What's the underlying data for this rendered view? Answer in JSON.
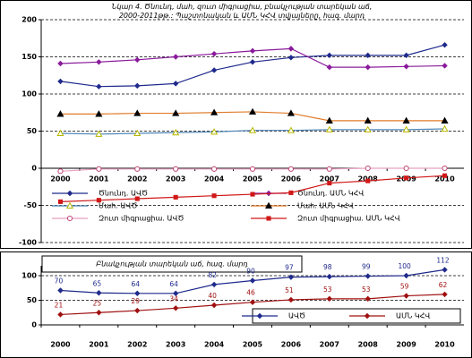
{
  "chart_data": [
    {
      "type": "line",
      "title": "Նկար 4. Ծնունդ, մահ, զուտ միգրացիա, բնակչության տարեկան աճ, 2000-2011թթ.: Պաշտոնական և ԱՄՆ ԿՀՎ տվյալները, հազ. մարդ",
      "categories": [
        "2000",
        "2001",
        "2002",
        "2003",
        "2004",
        "2005",
        "2006",
        "2007",
        "2008",
        "2009",
        "2010"
      ],
      "ylim": [
        -100,
        200
      ],
      "yticks": [
        -100,
        -50,
        0,
        50,
        100,
        150,
        200
      ],
      "grid": true,
      "series": [
        {
          "name": "Ծնունդ. ԱՎԾ",
          "color": "#1f2a8c",
          "marker": "diamond",
          "marker_color": "#1f2a8c",
          "values": [
            117,
            110,
            111,
            114,
            132,
            143,
            149,
            152,
            152,
            152,
            166
          ]
        },
        {
          "name": "Ծնունդ. ԱՄՆ ԿՀՎ",
          "color": "#8a1a9b",
          "marker": "diamond",
          "marker_color": "#8a1a9b",
          "values": [
            141,
            143,
            146,
            150,
            154,
            158,
            161,
            136,
            136,
            137,
            138
          ]
        },
        {
          "name": "Մահ. ԱՎԾ",
          "color": "#4f86b8",
          "marker": "triangle-open",
          "marker_color": "#b8b800",
          "values": [
            47,
            46,
            47,
            48,
            49,
            51,
            51,
            52,
            52,
            52,
            53
          ]
        },
        {
          "name": "Մահ. ԱՄՆ ԿՀՎ",
          "color": "#e07b2a",
          "marker": "triangle",
          "marker_color": "#000000",
          "values": [
            73,
            73,
            74,
            74,
            75,
            76,
            74,
            64,
            64,
            64,
            64
          ]
        },
        {
          "name": "Զուտ միգրացիա. ԱՎԾ",
          "color": "#e8a0c0",
          "marker": "circle-open",
          "marker_color": "#c04070",
          "values": [
            -4,
            -1,
            -1,
            -1,
            -1,
            -1,
            -1,
            -1,
            0,
            0,
            0
          ]
        },
        {
          "name": "Զուտ միգրացիա. ԱՄՆ ԿՀՎ",
          "color": "#d01818",
          "marker": "square",
          "marker_color": "#d01818",
          "values": [
            -45,
            -43,
            -41,
            -39,
            -37,
            -35,
            -33,
            -20,
            -17,
            -13,
            -10
          ]
        }
      ]
    },
    {
      "type": "line",
      "title": "Բնակչության տարեկան աճ, հազ. մարդ",
      "categories": [
        "2000",
        "2001",
        "2002",
        "2003",
        "2004",
        "2005",
        "2006",
        "2007",
        "2008",
        "2009",
        "2010"
      ],
      "ylim": [
        0,
        120
      ],
      "yticks": [
        0,
        50,
        100
      ],
      "grid": true,
      "series": [
        {
          "name": "ԱՎԾ",
          "color": "#1f2a8c",
          "marker": "diamond",
          "marker_color": "#1f2a8c",
          "values": [
            70,
            65,
            64,
            64,
            82,
            90,
            97,
            98,
            99,
            100,
            112
          ]
        },
        {
          "name": "ԱՄՆ ԿՀՎ",
          "color": "#a01010",
          "marker": "diamond",
          "marker_color": "#a01010",
          "values": [
            21,
            25,
            29,
            34,
            40,
            46,
            51,
            53,
            53,
            59,
            62
          ]
        }
      ]
    }
  ]
}
